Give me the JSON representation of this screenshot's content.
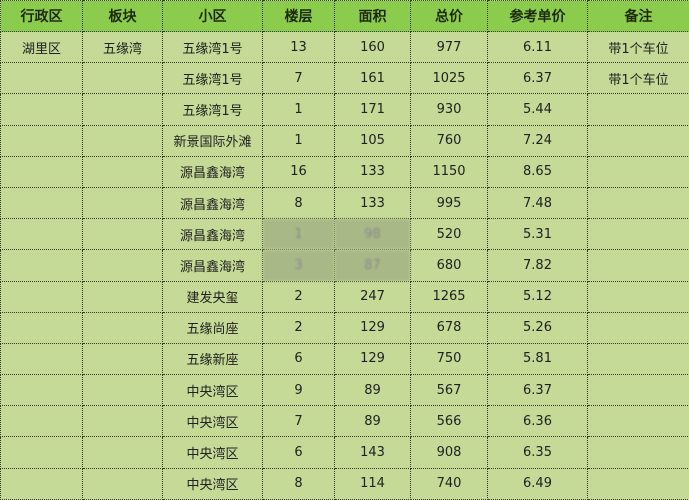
{
  "headers": [
    "行政区",
    "板块",
    "小区",
    "楼层",
    "面积",
    "总价",
    "参考单价",
    "备注"
  ],
  "rows": [
    [
      "湖里区",
      "五缘湾",
      "五缘湾1号",
      "13",
      "160",
      "977",
      "6.11",
      "带1个车位"
    ],
    [
      "",
      "",
      "五缘湾1号",
      "7",
      "161",
      "1025",
      "6.37",
      "带1个车位"
    ],
    [
      "",
      "",
      "五缘湾1号",
      "1",
      "171",
      "930",
      "5.44",
      ""
    ],
    [
      "",
      "",
      "新景国际外滩",
      "1",
      "105",
      "760",
      "7.24",
      ""
    ],
    [
      "",
      "",
      "源昌鑫海湾",
      "16",
      "133",
      "1150",
      "8.65",
      ""
    ],
    [
      "",
      "",
      "源昌鑫海湾",
      "8",
      "133",
      "995",
      "7.48",
      ""
    ],
    [
      "",
      "",
      "源昌鑫海湾",
      "1",
      "98",
      "520",
      "5.31",
      ""
    ],
    [
      "",
      "",
      "源昌鑫海湾",
      "3",
      "87",
      "680",
      "7.82",
      ""
    ],
    [
      "",
      "",
      "建发央玺",
      "2",
      "247",
      "1265",
      "5.12",
      ""
    ],
    [
      "",
      "",
      "五缘尚座",
      "2",
      "129",
      "678",
      "5.26",
      ""
    ],
    [
      "",
      "",
      "五缘新座",
      "6",
      "129",
      "750",
      "5.81",
      ""
    ],
    [
      "",
      "",
      "中央湾区",
      "9",
      "89",
      "567",
      "6.37",
      ""
    ],
    [
      "",
      "",
      "中央湾区",
      "7",
      "89",
      "566",
      "6.36",
      ""
    ],
    [
      "",
      "",
      "中央湾区",
      "6",
      "143",
      "908",
      "6.35",
      ""
    ],
    [
      "",
      "",
      "中央湾区",
      "8",
      "114",
      "740",
      "6.49",
      ""
    ]
  ],
  "colors": {
    "header": "#8ccc4c",
    "body": "#c5da96"
  }
}
